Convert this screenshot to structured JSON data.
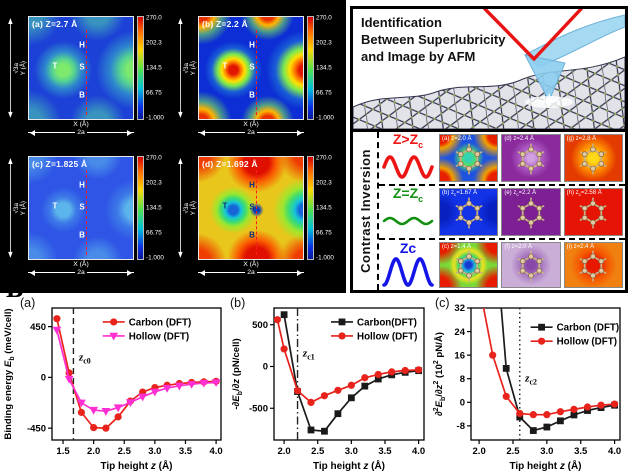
{
  "colors": {
    "carbon_red": "#e8231c",
    "hollow_magenta": "#ff2fd2",
    "carbon_black": "#1a1a1a",
    "row_red": "#ee1515",
    "row_green": "#129012",
    "row_blue": "#1515e8",
    "heat_dash_line": "#ff1c1c"
  },
  "heatmap_figure": {
    "colorbar_ticks": [
      "270.0",
      "202.3",
      "134.5",
      "66.75",
      "-1.000"
    ],
    "y_dim_label": "√3a",
    "y_axis_label": "Y (Å)",
    "x_axis_label": "X (Å)",
    "x_dim_label": "2a",
    "site_labels": {
      "t": "T",
      "h": "H",
      "s": "S",
      "b": "B"
    },
    "panels": [
      {
        "id": "a",
        "title": "(a) Z=2.7 Å",
        "variant": "hm-a",
        "label_color": "#ffffff"
      },
      {
        "id": "b",
        "title": "(b) Z=2.2 Å",
        "variant": "hm-b",
        "label_color": "#ffffff"
      },
      {
        "id": "c",
        "title": "(c) Z=1.825 Å",
        "variant": "hm-c",
        "label_color": "#ffffff"
      },
      {
        "id": "d",
        "title": "(d) Z=1.692 Å",
        "variant": "hm-d",
        "label_color": "#0b3080"
      }
    ]
  },
  "afm_panel": {
    "title_lines": [
      "Identification",
      "Between Superlubricity",
      "and Image by AFM"
    ]
  },
  "contrast_panel": {
    "side_label": "Contrast Inversion",
    "rows": [
      {
        "condition": {
          "main": "Z>Z",
          "sub": "c"
        },
        "color": "#ee1515",
        "wave": {
          "amp": 10,
          "fn": "sin"
        },
        "cells": [
          {
            "label": {
              "pre": "(a) z",
              "sub": "",
              "post": "=2.0 Å"
            },
            "variant": "mi-jet1"
          },
          {
            "label": {
              "pre": "(d) z",
              "sub": "",
              "post": "=2.4 Å"
            },
            "variant": "mi-purple"
          },
          {
            "label": {
              "pre": "(g) z",
              "sub": "",
              "post": "=2.8 Å"
            },
            "variant": "mi-orange"
          }
        ]
      },
      {
        "condition": {
          "main": "Z=Z",
          "sub": "c"
        },
        "color": "#129012",
        "wave": {
          "amp": 3,
          "fn": "sin"
        },
        "cells": [
          {
            "label": {
              "pre": "(b) z",
              "sub": "c",
              "post": "=1.67 Å"
            },
            "variant": "mi-blueflat"
          },
          {
            "label": {
              "pre": "(e) z",
              "sub": "c",
              "post": "=2.2 Å"
            },
            "variant": "mi-purpleflat"
          },
          {
            "label": {
              "pre": "(h) z",
              "sub": "c",
              "post": "=2.58 Å"
            },
            "variant": "mi-redflat"
          }
        ]
      },
      {
        "condition": {
          "main": "Z<Z",
          "sub": "c"
        },
        "color": "#1515e8",
        "wave": {
          "amp": 13,
          "fn": "cos"
        },
        "cells": [
          {
            "label": {
              "pre": "(c) z",
              "sub": "",
              "post": "=1.4 Å"
            },
            "variant": "mi-jet2"
          },
          {
            "label": {
              "pre": "(f) z",
              "sub": "",
              "post": "=2.0 Å"
            },
            "variant": "mi-purplelight"
          },
          {
            "label": {
              "pre": "(i) z",
              "sub": "",
              "post": "=2.4 Å"
            },
            "variant": "mi-orange2"
          }
        ]
      }
    ]
  },
  "section_label": "B",
  "chart_data": [
    {
      "type": "line",
      "panel_letter": "(a)",
      "xlim": [
        1.32,
        4.08
      ],
      "ylim": [
        -555,
        615
      ],
      "xticks": [
        1.5,
        2.0,
        2.5,
        3.0,
        3.5,
        4.0
      ],
      "xtick_labels": [
        "1.5",
        "2.0",
        "2.5",
        "3.0",
        "3.5",
        "4.0"
      ],
      "yticks": [
        450,
        0,
        -450
      ],
      "ytick_labels": [
        "450",
        "0",
        "-450"
      ],
      "xlabel_parts": [
        {
          "t": "Tip height "
        },
        {
          "t": "z",
          "i": true
        },
        {
          "t": " (Å)"
        }
      ],
      "ylabel_parts": [
        {
          "t": "Binding energy "
        },
        {
          "t": "E",
          "i": true
        },
        {
          "t": "b",
          "sub": true
        },
        {
          "t": " (meV/cell)"
        }
      ],
      "vline": {
        "x": 1.67,
        "style": "dashed",
        "label_parts": [
          {
            "t": "z",
            "i": true
          },
          {
            "t": "c0",
            "sub": true
          }
        ],
        "label_x": 1.76,
        "label_y": 150
      },
      "legend": {
        "x": 0.3,
        "y": 0.06
      },
      "series": [
        {
          "name": "Carbon (DFT)",
          "color": "#e8231c",
          "marker": "circle",
          "x": [
            1.4,
            1.6,
            1.8,
            2.0,
            2.2,
            2.4,
            2.6,
            2.8,
            3.0,
            3.2,
            3.4,
            3.6,
            3.8,
            4.0
          ],
          "y": [
            520,
            40,
            -310,
            -445,
            -450,
            -350,
            -210,
            -130,
            -90,
            -70,
            -55,
            -45,
            -40,
            -35
          ]
        },
        {
          "name": "Hollow (DFT)",
          "color": "#ff2fd2",
          "marker": "triangle-down",
          "x": [
            1.4,
            1.6,
            1.8,
            2.0,
            2.2,
            2.4,
            2.6,
            2.8,
            3.0,
            3.2,
            3.4,
            3.6,
            3.8,
            4.0
          ],
          "y": [
            420,
            -15,
            -225,
            -290,
            -300,
            -268,
            -222,
            -172,
            -128,
            -95,
            -75,
            -60,
            -50,
            -45
          ]
        }
      ]
    },
    {
      "type": "line",
      "panel_letter": "(b)",
      "xlim": [
        1.85,
        4.08
      ],
      "ylim": [
        -880,
        700
      ],
      "xticks": [
        2.0,
        2.5,
        3.0,
        3.5,
        4.0
      ],
      "xtick_labels": [
        "2.0",
        "2.5",
        "3.0",
        "3.5",
        "4.0"
      ],
      "yticks": [
        500,
        0,
        -500
      ],
      "ytick_labels": [
        "500",
        "0",
        "-500"
      ],
      "xlabel_parts": [
        {
          "t": "Tip height "
        },
        {
          "t": "z",
          "i": true
        },
        {
          "t": " (Å)"
        }
      ],
      "ylabel_parts": [
        {
          "t": "-∂"
        },
        {
          "t": "E",
          "i": true
        },
        {
          "t": "b",
          "sub": true
        },
        {
          "t": "/∂"
        },
        {
          "t": "z",
          "i": true
        },
        {
          "t": " (pN/cell)"
        }
      ],
      "vline": {
        "x": 2.2,
        "style": "dashdot",
        "label_parts": [
          {
            "t": "z",
            "i": true
          },
          {
            "t": "c1",
            "sub": true
          }
        ],
        "label_x": 2.28,
        "label_y": 120
      },
      "legend": {
        "x": 0.38,
        "y": 0.06
      },
      "series": [
        {
          "name": "Carbon(DFT)",
          "color": "#1a1a1a",
          "marker": "square",
          "x": [
            2.0,
            2.2,
            2.4,
            2.6,
            2.8,
            3.0,
            3.2,
            3.4,
            3.6,
            3.8,
            4.0
          ],
          "y": [
            620,
            -300,
            -760,
            -775,
            -565,
            -375,
            -235,
            -150,
            -100,
            -70,
            -50
          ]
        },
        {
          "name": "Hollow (DFT)",
          "color": "#e8231c",
          "marker": "circle",
          "x": [
            1.9,
            2.0,
            2.2,
            2.4,
            2.6,
            2.8,
            3.0,
            3.2,
            3.4,
            3.6,
            3.8,
            4.0
          ],
          "y": [
            560,
            210,
            -290,
            -430,
            -350,
            -285,
            -225,
            -135,
            -95,
            -65,
            -48,
            -40
          ]
        }
      ]
    },
    {
      "type": "line",
      "panel_letter": "(c)",
      "xlim": [
        1.88,
        4.08
      ],
      "ylim": [
        -12.8,
        32
      ],
      "xticks": [
        2.0,
        2.5,
        3.0,
        3.5,
        4.0
      ],
      "xtick_labels": [
        "2.0",
        "2.5",
        "3.0",
        "3.5",
        "4.0"
      ],
      "yticks": [
        32,
        24,
        16,
        8,
        0,
        -8
      ],
      "ytick_labels": [
        "32",
        "24",
        "16",
        "8",
        "0",
        "-8"
      ],
      "xlabel_parts": [
        {
          "t": "Tip height "
        },
        {
          "t": "z",
          "i": true
        },
        {
          "t": " (Å)"
        }
      ],
      "ylabel_parts": [
        {
          "t": "∂"
        },
        {
          "t": "2",
          "sup": true
        },
        {
          "t": "E",
          "i": true
        },
        {
          "t": "b",
          "sub": true
        },
        {
          "t": "/∂"
        },
        {
          "t": "z",
          "i": true
        },
        {
          "t": "2",
          "sup": true
        },
        {
          "t": " (10"
        },
        {
          "t": "2",
          "sup": true
        },
        {
          "t": " pN/Å)"
        }
      ],
      "vline": {
        "x": 2.6,
        "style": "dotted",
        "label_parts": [
          {
            "t": "z",
            "i": true
          },
          {
            "t": "c2",
            "sub": true
          }
        ],
        "label_x": 2.68,
        "label_y": 7
      },
      "legend": {
        "x": 0.4,
        "y": 0.1
      },
      "series": [
        {
          "name": "Carbon (DFT)",
          "color": "#1a1a1a",
          "marker": "square",
          "x": [
            2.32,
            2.4,
            2.6,
            2.8,
            3.0,
            3.2,
            3.4,
            3.6,
            3.8,
            4.0
          ],
          "y": [
            34,
            11.5,
            -5.0,
            -9.6,
            -8.4,
            -6.3,
            -4.3,
            -2.8,
            -1.8,
            -1.0
          ]
        },
        {
          "name": "Hollow  (DFT)",
          "color": "#e8231c",
          "marker": "circle",
          "x": [
            2.05,
            2.2,
            2.4,
            2.6,
            2.8,
            3.0,
            3.2,
            3.4,
            3.6,
            3.8,
            4.0
          ],
          "y": [
            34,
            16,
            2.0,
            -3.8,
            -4.2,
            -4.2,
            -3.2,
            -2.4,
            -1.6,
            -1.0,
            -0.6
          ]
        }
      ]
    }
  ]
}
